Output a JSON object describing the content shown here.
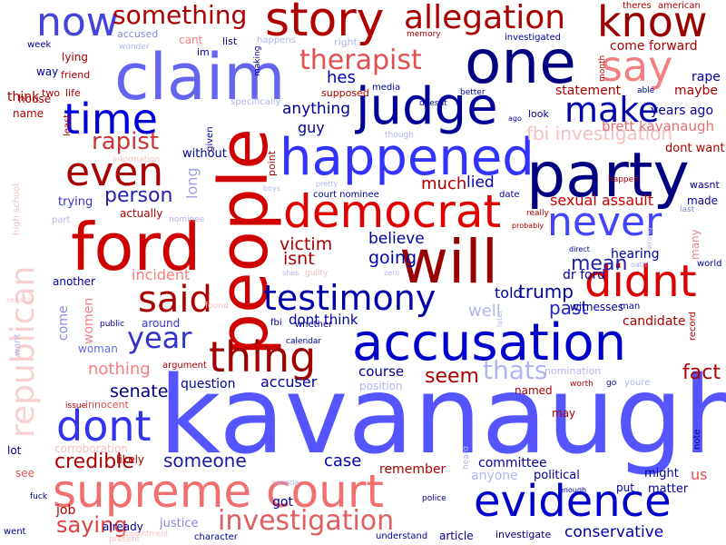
{
  "palette": {
    "dark_red": "#8b0000",
    "red": "#d10000",
    "light_red": "#f28080",
    "pale_red": "#f7c7c7",
    "navy": "#000080",
    "blue": "#1a1aff",
    "medium_blue": "#6464ff",
    "light_blue": "#b0b4f0",
    "background": "#ffffff"
  },
  "words": [
    {
      "text": "kavanaugh",
      "color": "#5555ff"
    },
    {
      "text": "people",
      "color": "#d10000"
    },
    {
      "text": "supreme court",
      "color": "#f07070"
    },
    {
      "text": "accusation",
      "color": "#0000cc"
    },
    {
      "text": "ford",
      "color": "#cc0000"
    },
    {
      "text": "claim",
      "color": "#6464ee"
    },
    {
      "text": "party",
      "color": "#000080"
    },
    {
      "text": "one",
      "color": "#000080"
    },
    {
      "text": "will",
      "color": "#990000"
    },
    {
      "text": "judge",
      "color": "#000099"
    },
    {
      "text": "happened",
      "color": "#3333ff"
    },
    {
      "text": "democrat",
      "color": "#e00000"
    },
    {
      "text": "story",
      "color": "#b00000"
    },
    {
      "text": "evidence",
      "color": "#0000cc"
    },
    {
      "text": "thing",
      "color": "#a00000"
    },
    {
      "text": "dont",
      "color": "#3333ee"
    },
    {
      "text": "didnt",
      "color": "#dd0000"
    },
    {
      "text": "never",
      "color": "#4444ff"
    },
    {
      "text": "testimony",
      "color": "#0000aa"
    },
    {
      "text": "time",
      "color": "#0000dd"
    },
    {
      "text": "even",
      "color": "#aa0000"
    },
    {
      "text": "know",
      "color": "#990000"
    },
    {
      "text": "say",
      "color": "#f28080"
    },
    {
      "text": "said",
      "color": "#aa0000"
    },
    {
      "text": "now",
      "color": "#4444dd"
    },
    {
      "text": "republican",
      "color": "#f8d0d0"
    },
    {
      "text": "make",
      "color": "#0000aa"
    },
    {
      "text": "allegation",
      "color": "#aa0000"
    },
    {
      "text": "investigation",
      "color": "#e06060"
    },
    {
      "text": "year",
      "color": "#3333cc"
    },
    {
      "text": "something",
      "color": "#aa0000"
    },
    {
      "text": "therapist",
      "color": "#e05050"
    },
    {
      "text": "rapist",
      "color": "#cc3333"
    },
    {
      "text": "thats",
      "color": "#b0b4f0"
    },
    {
      "text": "credible",
      "color": "#aa0000"
    },
    {
      "text": "saying",
      "color": "#e04040"
    },
    {
      "text": "someone",
      "color": "#1a1a99"
    },
    {
      "text": "fbi investigation",
      "color": "#f5c0c0"
    },
    {
      "text": "conservative",
      "color": "#0000aa"
    },
    {
      "text": "person",
      "color": "#2222aa"
    },
    {
      "text": "seem",
      "color": "#aa0000"
    },
    {
      "text": "fact",
      "color": "#aa0000"
    },
    {
      "text": "mean",
      "color": "#2222aa"
    },
    {
      "text": "past",
      "color": "#2222cc"
    },
    {
      "text": "trump",
      "color": "#000099"
    },
    {
      "text": "senate",
      "color": "#000080"
    },
    {
      "text": "victim",
      "color": "#aa0000"
    },
    {
      "text": "isnt",
      "color": "#aa0000"
    },
    {
      "text": "going",
      "color": "#0000aa"
    },
    {
      "text": "much",
      "color": "#aa0000"
    },
    {
      "text": "lied",
      "color": "#0000aa"
    },
    {
      "text": "anything",
      "color": "#000099"
    },
    {
      "text": "believe",
      "color": "#000099"
    },
    {
      "text": "hes",
      "color": "#0000aa"
    },
    {
      "text": "guy",
      "color": "#000099"
    },
    {
      "text": "case",
      "color": "#0000aa"
    },
    {
      "text": "accuser",
      "color": "#000099"
    },
    {
      "text": "question",
      "color": "#000099"
    },
    {
      "text": "course",
      "color": "#000099"
    },
    {
      "text": "nothing",
      "color": "#f28080"
    },
    {
      "text": "incident",
      "color": "#f28080"
    },
    {
      "text": "long",
      "color": "#a0a0dd"
    },
    {
      "text": "told",
      "color": "#000099"
    },
    {
      "text": "dont think",
      "color": "#0000aa"
    },
    {
      "text": "well",
      "color": "#b0b4f0"
    },
    {
      "text": "sexual assault",
      "color": "#cc0000"
    },
    {
      "text": "brett kavanaugh",
      "color": "#e07070"
    },
    {
      "text": "dont want",
      "color": "#aa0000"
    },
    {
      "text": "statement",
      "color": "#aa0000"
    },
    {
      "text": "come forward",
      "color": "#aa0000"
    },
    {
      "text": "years ago",
      "color": "#000099"
    },
    {
      "text": "maybe",
      "color": "#aa0000"
    },
    {
      "text": "rape",
      "color": "#000099"
    },
    {
      "text": "dr ford",
      "color": "#000099"
    },
    {
      "text": "hearing",
      "color": "#000099"
    },
    {
      "text": "candidate",
      "color": "#aa0000"
    },
    {
      "text": "witnesses",
      "color": "#000099"
    },
    {
      "text": "committee",
      "color": "#000099"
    },
    {
      "text": "remember",
      "color": "#aa0000"
    },
    {
      "text": "might",
      "color": "#000099"
    },
    {
      "text": "political",
      "color": "#000099"
    },
    {
      "text": "matter",
      "color": "#000099"
    },
    {
      "text": "put",
      "color": "#000099"
    },
    {
      "text": "us",
      "color": "#e05050"
    },
    {
      "text": "article",
      "color": "#000099"
    },
    {
      "text": "investigate",
      "color": "#000080"
    },
    {
      "text": "understand",
      "color": "#000099"
    },
    {
      "text": "anyone",
      "color": "#b0b4f0"
    },
    {
      "text": "named",
      "color": "#aa0000"
    },
    {
      "text": "may",
      "color": "#aa0000"
    },
    {
      "text": "justice",
      "color": "#8888dd"
    },
    {
      "text": "already",
      "color": "#000099"
    },
    {
      "text": "got",
      "color": "#000099"
    },
    {
      "text": "job",
      "color": "#aa0000"
    },
    {
      "text": "see",
      "color": "#e05050"
    },
    {
      "text": "lot",
      "color": "#000099"
    },
    {
      "text": "likely",
      "color": "#aa0000"
    },
    {
      "text": "corroboration",
      "color": "#f5c0c0"
    },
    {
      "text": "women",
      "color": "#f28080"
    },
    {
      "text": "woman",
      "color": "#6464ee"
    },
    {
      "text": "come",
      "color": "#8888dd"
    },
    {
      "text": "another",
      "color": "#000099"
    },
    {
      "text": "around",
      "color": "#3333cc"
    },
    {
      "text": "actually",
      "color": "#aa0000"
    },
    {
      "text": "trying",
      "color": "#3333cc"
    },
    {
      "text": "without",
      "color": "#000099"
    },
    {
      "text": "point",
      "color": "#aa0000"
    },
    {
      "text": "name",
      "color": "#aa0000"
    },
    {
      "text": "think",
      "color": "#aa0000"
    },
    {
      "text": "way",
      "color": "#000099"
    },
    {
      "text": "house",
      "color": "#aa0000"
    },
    {
      "text": "lying",
      "color": "#aa0000"
    },
    {
      "text": "friend",
      "color": "#aa0000"
    },
    {
      "text": "two",
      "color": "#aa0000"
    },
    {
      "text": "life",
      "color": "#aa0000"
    },
    {
      "text": "accused",
      "color": "#8888dd"
    },
    {
      "text": "cant",
      "color": "#f28080"
    },
    {
      "text": "im",
      "color": "#000099"
    },
    {
      "text": "list",
      "color": "#000099"
    },
    {
      "text": "supposed",
      "color": "#aa0000"
    },
    {
      "text": "media",
      "color": "#000099"
    },
    {
      "text": "look",
      "color": "#000099"
    },
    {
      "text": "investigated",
      "color": "#000099"
    },
    {
      "text": "theres",
      "color": "#aa0000"
    },
    {
      "text": "american",
      "color": "#aa0000"
    },
    {
      "text": "court nominee",
      "color": "#000099"
    },
    {
      "text": "date",
      "color": "#000099"
    },
    {
      "text": "made",
      "color": "#000099"
    },
    {
      "text": "wasnt",
      "color": "#000099"
    },
    {
      "text": "many",
      "color": "#f28080"
    },
    {
      "text": "world",
      "color": "#000099"
    },
    {
      "text": "record",
      "color": "#aa0000"
    },
    {
      "text": "note",
      "color": "#000099"
    },
    {
      "text": "went",
      "color": "#000099"
    },
    {
      "text": "fuck",
      "color": "#000099"
    },
    {
      "text": "police",
      "color": "#000099"
    },
    {
      "text": "character",
      "color": "#000099"
    },
    {
      "text": "public",
      "color": "#000099"
    },
    {
      "text": "fbi",
      "color": "#000099"
    },
    {
      "text": "calendar",
      "color": "#000099"
    },
    {
      "text": "whether",
      "color": "#000099"
    },
    {
      "text": "argument",
      "color": "#aa0000"
    },
    {
      "text": "innocent",
      "color": "#e05050"
    },
    {
      "text": "issue",
      "color": "#aa0000"
    },
    {
      "text": "week",
      "color": "#000099"
    },
    {
      "text": "memory",
      "color": "#aa0000"
    },
    {
      "text": "month",
      "color": "#aa0000"
    },
    {
      "text": "doesnt",
      "color": "#000099"
    },
    {
      "text": "better",
      "color": "#000099"
    },
    {
      "text": "ago",
      "color": "#000099"
    },
    {
      "text": "able",
      "color": "#000099"
    },
    {
      "text": "happen",
      "color": "#aa0000"
    },
    {
      "text": "last",
      "color": "#8888dd"
    },
    {
      "text": "really",
      "color": "#aa0000"
    },
    {
      "text": "probably",
      "color": "#aa0000"
    },
    {
      "text": "direct",
      "color": "#000099"
    },
    {
      "text": "given",
      "color": "#000099"
    },
    {
      "text": "making",
      "color": "#000099"
    },
    {
      "text": "least",
      "color": "#aa0000"
    },
    {
      "text": "high school",
      "color": "#f5c0c0"
    },
    {
      "text": "information",
      "color": "#f5c0c0"
    },
    {
      "text": "nominee",
      "color": "#b0b4f0"
    },
    {
      "text": "part",
      "color": "#b0b4f0"
    },
    {
      "text": "senator",
      "color": "#f5c0c0"
    },
    {
      "text": "want",
      "color": "#b0b4f0"
    },
    {
      "text": "boys",
      "color": "#b0b4f0"
    },
    {
      "text": "pretty",
      "color": "#b0b4f0"
    },
    {
      "text": "wonder",
      "color": "#b0b4f0"
    },
    {
      "text": "right",
      "color": "#b0b4f0"
    },
    {
      "text": "happens",
      "color": "#b0b4f0"
    },
    {
      "text": "specifically",
      "color": "#b0b4f0"
    },
    {
      "text": "though",
      "color": "#b0b4f0"
    },
    {
      "text": "shes",
      "color": "#b0b4f0"
    },
    {
      "text": "guilty",
      "color": "#f5c0c0"
    },
    {
      "text": "zero",
      "color": "#b0b4f0"
    },
    {
      "text": "found",
      "color": "#f5c0c0"
    },
    {
      "text": "position",
      "color": "#b0b4f0"
    },
    {
      "text": "nomination",
      "color": "#b0b4f0"
    },
    {
      "text": "worth",
      "color": "#aa0000"
    },
    {
      "text": "go",
      "color": "#000099"
    },
    {
      "text": "youre",
      "color": "#b0b4f0"
    },
    {
      "text": "heard",
      "color": "#b0b4f0"
    },
    {
      "text": "canada",
      "color": "#b0b4f0"
    },
    {
      "text": "enough",
      "color": "#000099"
    },
    {
      "text": "present",
      "color": "#f5c0c0"
    },
    {
      "text": "appointment",
      "color": "#f5c0c0"
    },
    {
      "text": "oath",
      "color": "#b0b4f0"
    },
    {
      "text": "wrong",
      "color": "#b0b4f0"
    },
    {
      "text": "later",
      "color": "#b0b4f0"
    },
    {
      "text": "man",
      "color": "#000099"
    }
  ]
}
